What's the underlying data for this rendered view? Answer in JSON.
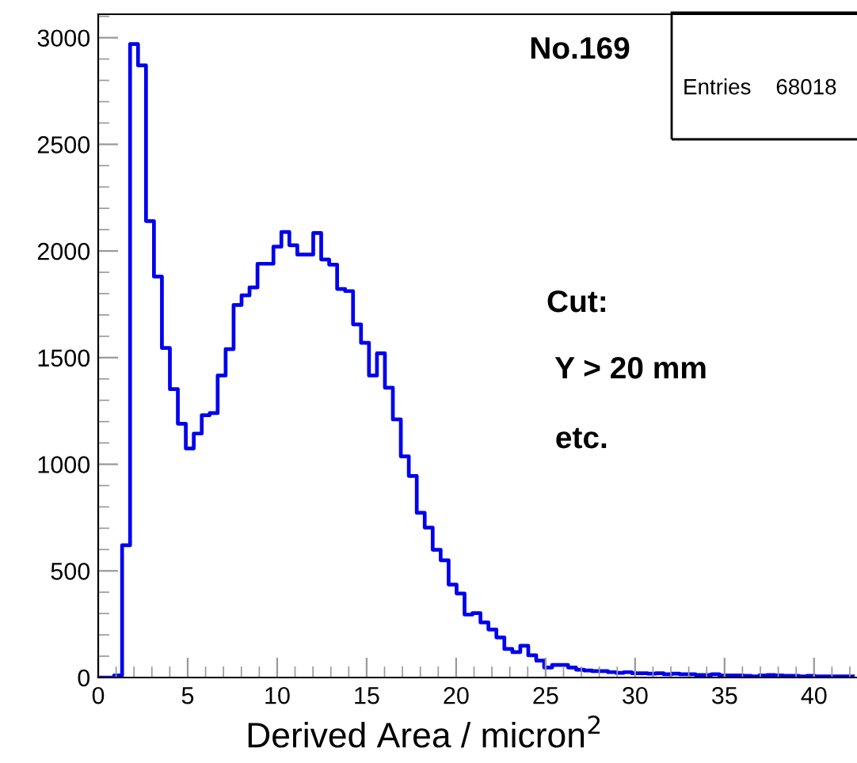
{
  "chart_data": {
    "type": "histogram",
    "xlabel": "Derived Area / micron$^{2}$",
    "annotations": [
      "No.169",
      "Cut:",
      " Y > 20 mm",
      " etc.",
      "Entries    68018"
    ],
    "bins": [
      0,
      0.445,
      0.89,
      1.335,
      1.78,
      2.225,
      2.67,
      3.115,
      3.56,
      4.005,
      4.45,
      4.895,
      5.34,
      5.785,
      6.23,
      6.675,
      7.12,
      7.565,
      8.01,
      8.455,
      8.9,
      9.345,
      9.79,
      10.235,
      10.68,
      11.125,
      11.57,
      12.015,
      12.46,
      12.905,
      13.35,
      13.795,
      14.24,
      14.685,
      15.13,
      15.575,
      16.02,
      16.465,
      16.91,
      17.355,
      17.8,
      18.245,
      18.69,
      19.135,
      19.58,
      20.025,
      20.47,
      20.915,
      21.36,
      21.805,
      22.25,
      22.695,
      23.14,
      23.585,
      24.03,
      24.475,
      24.92,
      25.365,
      25.81,
      26.255,
      26.7,
      27.145,
      27.59,
      28.035,
      28.48,
      28.925,
      29.37,
      29.815,
      30.26,
      30.705,
      31.15,
      31.595,
      32.04,
      32.485,
      32.93,
      33.375,
      33.82,
      34.265,
      34.71,
      35.155,
      35.6,
      36.045,
      36.49,
      36.935,
      37.38,
      37.825,
      38.27,
      38.715,
      39.16,
      39.605,
      40.05,
      40.495,
      40.94,
      41.385,
      41.83,
      42.275
    ],
    "values": [
      0,
      0,
      10,
      620,
      2970,
      2870,
      2140,
      1880,
      1545,
      1352,
      1190,
      1074,
      1144,
      1230,
      1240,
      1416,
      1540,
      1747,
      1792,
      1829,
      1940,
      1940,
      2020,
      2089,
      2027,
      1983,
      1983,
      2084,
      1960,
      1936,
      1822,
      1812,
      1656,
      1569,
      1416,
      1520,
      1359,
      1210,
      1037,
      945,
      772,
      703,
      599,
      550,
      436,
      394,
      295,
      302,
      258,
      225,
      188,
      134,
      119,
      149,
      104,
      79,
      47,
      59,
      59,
      47,
      37,
      33,
      30,
      30,
      25,
      22,
      25,
      20,
      20,
      18,
      20,
      15,
      18,
      15,
      15,
      12,
      12,
      15,
      10,
      10,
      10,
      8,
      5,
      10,
      12,
      10,
      8,
      8,
      5,
      8,
      5,
      5,
      5,
      5,
      5
    ],
    "color": "#0000ee",
    "xlim": [
      0,
      42.4
    ],
    "ylim": [
      0,
      3110
    ],
    "xticks": [
      0,
      5,
      10,
      15,
      20,
      25,
      30,
      35,
      40
    ],
    "yticks": [
      0,
      500,
      1000,
      1500,
      2000,
      2500,
      3000
    ],
    "grid": false,
    "legend": false
  }
}
